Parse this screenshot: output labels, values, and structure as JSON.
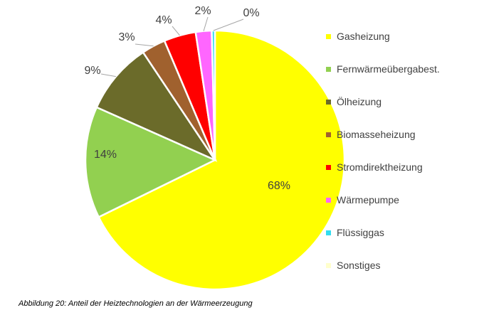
{
  "chart_data": {
    "type": "pie",
    "categories": [
      "Gasheizung",
      "Fernwärmeübergabest.",
      "Ölheizung",
      "Biomasseheizung",
      "Stromdirektheizung",
      "Wärmepumpe",
      "Flüssiggas",
      "Sonstiges"
    ],
    "values": [
      68,
      14,
      9,
      3,
      4,
      2,
      0.4,
      0
    ],
    "data_labels": [
      "68%",
      "14%",
      "9%",
      "3%",
      "4%",
      "2%",
      "0%",
      "0%"
    ],
    "colors": [
      "#ffff00",
      "#92d050",
      "#6b6b2a",
      "#a0612e",
      "#ff0000",
      "#ff66ff",
      "#33ddf0",
      "#ffffcc"
    ],
    "start_angle_deg": 0,
    "direction": "clockwise",
    "legend_position": "right",
    "title": ""
  },
  "caption": "Abbildung 20: Anteil der Heiztechnologien an der Wärmeerzeugung"
}
